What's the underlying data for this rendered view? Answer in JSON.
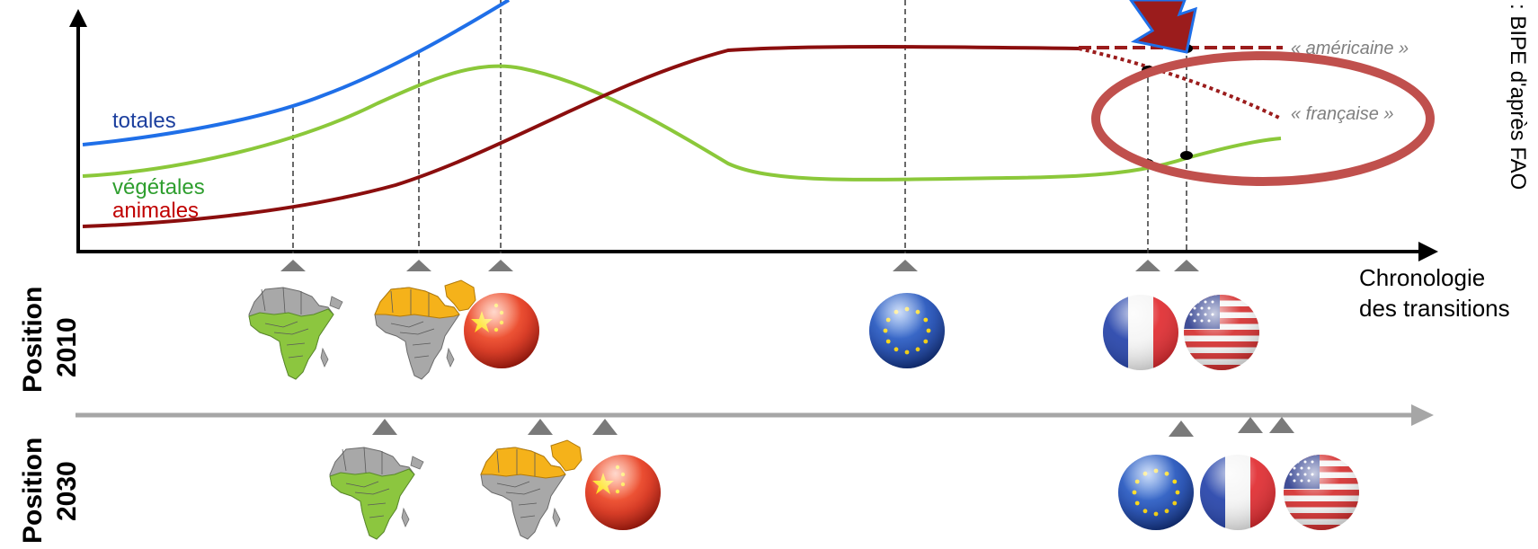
{
  "chart": {
    "series": [
      {
        "key": "totales",
        "label": "totales",
        "color": "#1f6fe8",
        "label_color": "#1c3f9e"
      },
      {
        "key": "vegetales",
        "label": "végétales",
        "color": "#8bc83a",
        "label_color": "#2e9e2e"
      },
      {
        "key": "animales",
        "label": "animales",
        "color": "#8b0e0e",
        "label_color": "#c00000"
      }
    ],
    "scenario_americaine": "« américaine »",
    "scenario_francaise": "« française »",
    "x_axis_label_line1": "Chronologie",
    "x_axis_label_line2": "des transitions",
    "source_note": ": BIPE d'après FAO",
    "highlight_color": "#c0504d",
    "arrow_color": "#9b1c1c"
  },
  "positions": [
    {
      "label_line1": "Position",
      "label_line2": "2010",
      "icons": [
        "africa-subsaharan-map-icon",
        "africa-north-middle-east-map-icon",
        "china-flag-icon",
        "eu-flag-icon",
        "france-flag-icon",
        "usa-flag-icon"
      ]
    },
    {
      "label_line1": "Position",
      "label_line2": "2030",
      "icons": [
        "africa-subsaharan-map-icon",
        "africa-north-middle-east-map-icon",
        "china-flag-icon",
        "eu-flag-icon",
        "france-flag-icon",
        "usa-flag-icon"
      ]
    }
  ]
}
